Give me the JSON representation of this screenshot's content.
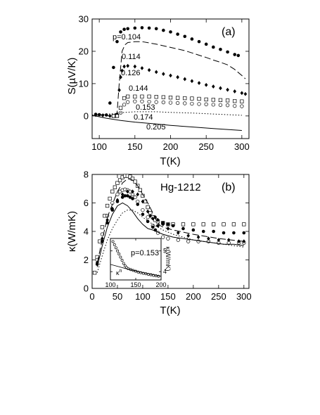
{
  "chart_data": [
    {
      "type": "scatter",
      "panel": "(a)",
      "xlabel": "T(K)",
      "ylabel": "S(µV/K)",
      "xlim": [
        90,
        310
      ],
      "ylim": [
        -7,
        30
      ],
      "xticks": [
        100,
        150,
        200,
        250,
        300
      ],
      "yticks": [
        0,
        10,
        20,
        30
      ],
      "series": [
        {
          "name": "p=0.104",
          "style": "filled-circles",
          "x": [
            95,
            100,
            110,
            115,
            120,
            125,
            130,
            135,
            140,
            150,
            160,
            170,
            180,
            190,
            200,
            210,
            220,
            230,
            240,
            250,
            260,
            270,
            280,
            290,
            295
          ],
          "y": [
            0.5,
            0.4,
            0.3,
            4,
            15,
            23,
            26,
            26.8,
            27,
            27.2,
            27.3,
            27.2,
            27,
            26.5,
            26,
            25.3,
            24.6,
            23.8,
            23,
            22.2,
            21.3,
            20.6,
            19.8,
            19,
            18.7
          ]
        },
        {
          "name": "0.114",
          "style": "dashed",
          "x": [
            95,
            105,
            115,
            120,
            125,
            128,
            132,
            136,
            140,
            150,
            160,
            170,
            180,
            190,
            200,
            210,
            220,
            230,
            240,
            250,
            260,
            270,
            280,
            290,
            300,
            305
          ],
          "y": [
            0.3,
            0.2,
            0,
            0,
            1,
            10,
            20,
            22,
            22.7,
            23,
            23,
            22.6,
            22.2,
            21.7,
            21.2,
            20.7,
            20.2,
            19.5,
            18.8,
            18.1,
            17.3,
            16.6,
            15.8,
            14.4,
            12.5,
            11.5
          ]
        },
        {
          "name": "0.126",
          "style": "filled-diamonds",
          "x": [
            95,
            105,
            115,
            120,
            125,
            128,
            130,
            132,
            135,
            140,
            150,
            160,
            170,
            180,
            190,
            200,
            210,
            220,
            230,
            240,
            250,
            260,
            270,
            280,
            290,
            300,
            305
          ],
          "y": [
            0.3,
            0.2,
            0,
            0,
            0.5,
            8,
            12,
            14,
            15.3,
            15.5,
            15.3,
            14.8,
            14.2,
            13.6,
            13,
            12.5,
            12,
            11.4,
            10.8,
            10.2,
            9.6,
            9.1,
            8.6,
            8.1,
            7.6,
            7.1,
            6.8
          ]
        },
        {
          "name": "0.144",
          "style": "open-squares",
          "x": [
            120,
            125,
            130,
            135,
            140,
            150,
            160,
            170,
            180,
            190,
            200,
            210,
            220,
            230,
            240,
            250,
            260,
            270,
            280,
            290,
            300
          ],
          "y": [
            0,
            0,
            2.5,
            5.5,
            6,
            6,
            6,
            6,
            5.9,
            5.8,
            5.7,
            5.6,
            5.5,
            5.4,
            5.3,
            5.1,
            5,
            4.9,
            4.8,
            4.6,
            4.5
          ]
        },
        {
          "name": "0.153",
          "style": "open-circles",
          "x": [
            120,
            125,
            130,
            135,
            140,
            150,
            160,
            170,
            180,
            190,
            200,
            210,
            220,
            230,
            240,
            250,
            260,
            270,
            280,
            290,
            300
          ],
          "y": [
            0,
            0,
            1,
            3.5,
            4.3,
            4.5,
            4.5,
            4.4,
            4.3,
            4.2,
            4.1,
            4,
            3.9,
            3.8,
            3.7,
            3.6,
            3.5,
            3.4,
            3.3,
            3.1,
            3
          ]
        },
        {
          "name": "0.174",
          "style": "dotted",
          "x": [
            90,
            110,
            120,
            130,
            150,
            180,
            200,
            230,
            260,
            280,
            300
          ],
          "y": [
            0.3,
            0.5,
            0.7,
            1,
            1.3,
            1.3,
            1.1,
            0.9,
            0.6,
            0.4,
            0.2
          ]
        },
        {
          "name": "0.205",
          "style": "solid",
          "x": [
            90,
            110,
            130,
            150,
            180,
            200,
            230,
            260,
            280,
            300
          ],
          "y": [
            0.2,
            -0.7,
            -1.4,
            -1.9,
            -2.5,
            -2.9,
            -3.4,
            -3.9,
            -4.2,
            -4.5
          ]
        }
      ]
    },
    {
      "type": "scatter",
      "panel": "(b)",
      "title": "Hg-1212",
      "xlabel": "T(K)",
      "ylabel": "κ(W/mK)",
      "xlim": [
        0,
        310
      ],
      "ylim": [
        0,
        8
      ],
      "xticks": [
        0,
        50,
        100,
        150,
        200,
        250,
        300
      ],
      "yticks": [
        0,
        2,
        4,
        6,
        8
      ],
      "series": [
        {
          "style": "open-squares",
          "x": [
            5,
            10,
            15,
            20,
            25,
            30,
            35,
            40,
            45,
            50,
            55,
            60,
            65,
            70,
            75,
            80,
            85,
            90,
            95,
            100,
            105,
            110,
            115,
            120,
            125,
            130,
            140,
            150,
            160,
            180,
            200,
            220,
            240,
            260,
            280,
            300
          ],
          "y": [
            1.1,
            2.2,
            3.3,
            4.3,
            5.1,
            5.8,
            6.3,
            6.8,
            7.1,
            7.4,
            7.6,
            7.8,
            7.9,
            7.9,
            7.85,
            7.7,
            7.5,
            7.2,
            6.9,
            6.5,
            6.1,
            5.7,
            5.3,
            5,
            4.8,
            4.7,
            4.6,
            4.5,
            4.5,
            4.5,
            4.5,
            4.5,
            4.5,
            4.5,
            4.5,
            4.5
          ]
        },
        {
          "style": "open-circles",
          "x": [
            10,
            20,
            30,
            40,
            50,
            55,
            60,
            65,
            70,
            75,
            80,
            85,
            90,
            100,
            110,
            120,
            130,
            140,
            150,
            170,
            190,
            210,
            230,
            250,
            270,
            290,
            300
          ],
          "y": [
            2,
            3.8,
            5.1,
            6,
            6.6,
            6.8,
            6.9,
            6.95,
            6.9,
            6.8,
            6.6,
            6.4,
            6.1,
            5.5,
            5,
            4.4,
            3.9,
            3.6,
            3.5,
            3.4,
            3.3,
            3.3,
            3.3,
            3.2,
            3.2,
            3.2,
            3.2
          ]
        },
        {
          "style": "filled-circles",
          "x": [
            10,
            20,
            30,
            40,
            50,
            60,
            65,
            70,
            75,
            80,
            90,
            100,
            110,
            120,
            125,
            130,
            140,
            150,
            160,
            180,
            200,
            220,
            240,
            260,
            280,
            300
          ],
          "y": [
            1.7,
            3.3,
            4.6,
            5.5,
            6.1,
            6.4,
            6.5,
            6.5,
            6.4,
            6.3,
            5.9,
            5.2,
            4.7,
            4.3,
            4.1,
            4.4,
            4.6,
            4.5,
            4.4,
            4.2,
            4.1,
            4,
            4,
            3.9,
            3.9,
            3.9
          ]
        },
        {
          "style": "filled-diamonds",
          "x": [
            10,
            20,
            30,
            40,
            50,
            60,
            70,
            80,
            90,
            100,
            110,
            115,
            120,
            125,
            130,
            140,
            150,
            170,
            190,
            210,
            230,
            250,
            270,
            290,
            300
          ],
          "y": [
            1.8,
            3.5,
            4.8,
            5.6,
            6.2,
            6.6,
            6.8,
            6.8,
            6.6,
            6.1,
            5.4,
            5.1,
            4.9,
            5,
            4.8,
            4.5,
            4.2,
            3.9,
            3.7,
            3.6,
            3.5,
            3.4,
            3.4,
            3.3,
            3.3
          ]
        },
        {
          "style": "dashed",
          "x": [
            10,
            30,
            50,
            60,
            70,
            80,
            90,
            100,
            110,
            120,
            125,
            130,
            135,
            140,
            160,
            200,
            250,
            300
          ],
          "y": [
            1.8,
            5,
            6.8,
            7.4,
            7.7,
            7.6,
            7.2,
            6.6,
            6,
            5.3,
            4.9,
            4.6,
            4.4,
            4.3,
            4.1,
            3.8,
            3.5,
            3.3
          ]
        },
        {
          "style": "solid",
          "x": [
            10,
            20,
            30,
            40,
            50,
            60,
            70,
            80,
            90,
            100,
            110,
            120,
            140,
            160,
            180,
            200,
            220,
            240,
            260,
            280,
            300
          ],
          "y": [
            1.5,
            3,
            4.3,
            5.2,
            5.8,
            6,
            5.8,
            5.4,
            4.9,
            4.5,
            4.2,
            4.1,
            3.8,
            3.6,
            3.5,
            3.4,
            3.3,
            3.2,
            3.1,
            3.1,
            3
          ]
        },
        {
          "style": "dotted",
          "x": [
            10,
            20,
            30,
            40,
            50,
            60,
            70,
            80,
            90,
            100,
            120,
            140,
            160,
            180,
            200,
            220,
            240,
            260,
            280,
            300
          ],
          "y": [
            1.1,
            2.3,
            3.4,
            4.2,
            4.8,
            5.3,
            5.5,
            5.5,
            5.3,
            5,
            4.5,
            4.1,
            3.8,
            3.6,
            3.4,
            3.3,
            3.2,
            3.1,
            3,
            2.9
          ]
        }
      ],
      "inset": {
        "label": "p=0.153",
        "ylabel": "κ(W/mK)",
        "line_label": "κ",
        "line_label_sup": "n",
        "xlim": [
          100,
          200
        ],
        "ylim": [
          3.6,
          5.6
        ],
        "xticks": [
          100,
          150,
          200
        ],
        "yticks": [
          4,
          5
        ],
        "series": [
          {
            "style": "open-circles",
            "x": [
              105,
              108,
              111,
              114,
              117,
              120,
              123,
              126,
              129,
              132,
              135,
              140,
              145,
              150,
              155,
              160,
              165,
              170,
              175,
              180,
              185,
              190,
              195
            ],
            "y": [
              5.45,
              5.3,
              5.15,
              5,
              4.85,
              4.7,
              4.55,
              4.4,
              4.28,
              4.2,
              4.15,
              4.1,
              4.06,
              4.02,
              3.98,
              3.95,
              3.92,
              3.9,
              3.87,
              3.85,
              3.82,
              3.8,
              3.78
            ]
          },
          {
            "style": "solid",
            "x": [
              100,
              130,
              160,
              200
            ],
            "y": [
              4.35,
              4.15,
              3.98,
              3.78
            ]
          }
        ]
      }
    }
  ]
}
